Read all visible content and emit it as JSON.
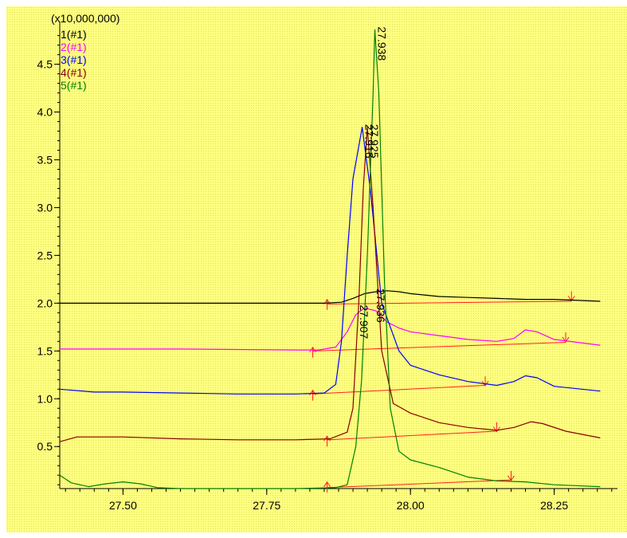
{
  "chart_data": {
    "type": "line",
    "multiplier_label": "(x10,000,000)",
    "xlim": [
      27.39,
      28.36
    ],
    "ylim": [
      0.06,
      4.88
    ],
    "x_ticks": [
      {
        "value": 27.5,
        "label": "27.50"
      },
      {
        "value": 27.75,
        "label": "27.75"
      },
      {
        "value": 28.0,
        "label": "28.00"
      },
      {
        "value": 28.25,
        "label": "28.25"
      }
    ],
    "y_ticks": [
      {
        "value": 0.5,
        "label": "0.5"
      },
      {
        "value": 1.0,
        "label": "1.0"
      },
      {
        "value": 1.5,
        "label": "1.5"
      },
      {
        "value": 2.0,
        "label": "2.0"
      },
      {
        "value": 2.5,
        "label": "2.5"
      },
      {
        "value": 3.0,
        "label": "3.0"
      },
      {
        "value": 3.5,
        "label": "3.5"
      },
      {
        "value": 4.0,
        "label": "4.0"
      },
      {
        "value": 4.5,
        "label": "4.5"
      }
    ],
    "series": [
      {
        "name": "1(#1)",
        "color": "#000000",
        "points": [
          [
            27.39,
            2.0
          ],
          [
            27.6,
            2.0
          ],
          [
            27.8,
            2.0
          ],
          [
            27.85,
            2.0
          ],
          [
            27.88,
            2.01
          ],
          [
            27.9,
            2.05
          ],
          [
            27.92,
            2.1
          ],
          [
            27.94,
            2.12
          ],
          [
            27.96,
            2.13
          ],
          [
            27.98,
            2.12
          ],
          [
            28.0,
            2.1
          ],
          [
            28.05,
            2.07
          ],
          [
            28.1,
            2.06
          ],
          [
            28.15,
            2.05
          ],
          [
            28.2,
            2.04
          ],
          [
            28.25,
            2.04
          ],
          [
            28.33,
            2.02
          ]
        ],
        "peak_label": {
          "text": "27.936",
          "x": 27.936,
          "y": 2.12
        },
        "markers": [
          [
            27.855,
            1.98
          ],
          [
            28.28,
            2.05
          ]
        ]
      },
      {
        "name": "2(#1)",
        "color": "#ff00ff",
        "points": [
          [
            27.39,
            1.52
          ],
          [
            27.6,
            1.52
          ],
          [
            27.8,
            1.51
          ],
          [
            27.84,
            1.51
          ],
          [
            27.87,
            1.54
          ],
          [
            27.89,
            1.7
          ],
          [
            27.905,
            1.88
          ],
          [
            27.92,
            1.95
          ],
          [
            27.94,
            1.92
          ],
          [
            27.96,
            1.8
          ],
          [
            27.98,
            1.74
          ],
          [
            28.0,
            1.7
          ],
          [
            28.05,
            1.66
          ],
          [
            28.1,
            1.62
          ],
          [
            28.15,
            1.6
          ],
          [
            28.18,
            1.63
          ],
          [
            28.2,
            1.72
          ],
          [
            28.22,
            1.7
          ],
          [
            28.25,
            1.62
          ],
          [
            28.33,
            1.56
          ]
        ],
        "peak_label": {
          "text": "27.907",
          "x": 27.907,
          "y": 1.95
        },
        "markers": [
          [
            27.83,
            1.48
          ],
          [
            28.27,
            1.62
          ]
        ]
      },
      {
        "name": "3(#1)",
        "color": "#0000ff",
        "points": [
          [
            27.39,
            1.1
          ],
          [
            27.45,
            1.07
          ],
          [
            27.5,
            1.07
          ],
          [
            27.6,
            1.06
          ],
          [
            27.7,
            1.05
          ],
          [
            27.8,
            1.05
          ],
          [
            27.85,
            1.06
          ],
          [
            27.87,
            1.15
          ],
          [
            27.88,
            1.6
          ],
          [
            27.89,
            2.5
          ],
          [
            27.9,
            3.3
          ],
          [
            27.916,
            3.84
          ],
          [
            27.93,
            3.2
          ],
          [
            27.95,
            2.0
          ],
          [
            27.98,
            1.5
          ],
          [
            28.0,
            1.35
          ],
          [
            28.05,
            1.25
          ],
          [
            28.1,
            1.18
          ],
          [
            28.15,
            1.14
          ],
          [
            28.18,
            1.18
          ],
          [
            28.2,
            1.24
          ],
          [
            28.22,
            1.22
          ],
          [
            28.25,
            1.13
          ],
          [
            28.33,
            1.08
          ]
        ],
        "peak_label": {
          "text": "27.916",
          "x": 27.916,
          "y": 3.84
        },
        "markers": [
          [
            27.83,
            1.03
          ],
          [
            28.13,
            1.16
          ]
        ]
      },
      {
        "name": "4(#1)",
        "color": "#880000",
        "points": [
          [
            27.39,
            0.55
          ],
          [
            27.42,
            0.6
          ],
          [
            27.5,
            0.6
          ],
          [
            27.6,
            0.58
          ],
          [
            27.7,
            0.57
          ],
          [
            27.8,
            0.57
          ],
          [
            27.86,
            0.58
          ],
          [
            27.89,
            0.65
          ],
          [
            27.9,
            0.9
          ],
          [
            27.91,
            2.0
          ],
          [
            27.918,
            3.2
          ],
          [
            27.925,
            3.84
          ],
          [
            27.935,
            3.0
          ],
          [
            27.95,
            1.5
          ],
          [
            27.97,
            0.95
          ],
          [
            28.0,
            0.85
          ],
          [
            28.05,
            0.75
          ],
          [
            28.1,
            0.7
          ],
          [
            28.15,
            0.67
          ],
          [
            28.18,
            0.7
          ],
          [
            28.21,
            0.76
          ],
          [
            28.23,
            0.74
          ],
          [
            28.27,
            0.66
          ],
          [
            28.33,
            0.59
          ]
        ],
        "peak_label": {
          "text": "27.925",
          "x": 27.925,
          "y": 3.84
        },
        "markers": [
          [
            27.855,
            0.55
          ],
          [
            28.15,
            0.68
          ]
        ]
      },
      {
        "name": "5(#1)",
        "color": "#008000",
        "points": [
          [
            27.39,
            0.2
          ],
          [
            27.41,
            0.12
          ],
          [
            27.44,
            0.08
          ],
          [
            27.47,
            0.11
          ],
          [
            27.5,
            0.13
          ],
          [
            27.53,
            0.11
          ],
          [
            27.56,
            0.07
          ],
          [
            27.6,
            0.06
          ],
          [
            27.7,
            0.06
          ],
          [
            27.8,
            0.06
          ],
          [
            27.87,
            0.07
          ],
          [
            27.89,
            0.1
          ],
          [
            27.905,
            0.5
          ],
          [
            27.915,
            1.2
          ],
          [
            27.925,
            2.5
          ],
          [
            27.935,
            4.2
          ],
          [
            27.938,
            4.86
          ],
          [
            27.945,
            4.2
          ],
          [
            27.955,
            2.2
          ],
          [
            27.965,
            0.9
          ],
          [
            27.98,
            0.45
          ],
          [
            28.0,
            0.36
          ],
          [
            28.05,
            0.28
          ],
          [
            28.1,
            0.18
          ],
          [
            28.15,
            0.14
          ],
          [
            28.2,
            0.13
          ],
          [
            28.25,
            0.1
          ],
          [
            28.33,
            0.08
          ]
        ],
        "peak_label": {
          "text": "27.938",
          "x": 27.938,
          "y": 4.86
        },
        "markers": [
          [
            27.855,
            0.07
          ],
          [
            28.175,
            0.17
          ]
        ]
      }
    ],
    "baselines": [
      {
        "color": "#ff2020",
        "from": [
          27.855,
          1.99
        ],
        "to": [
          28.28,
          2.02
        ]
      },
      {
        "color": "#ff2020",
        "from": [
          27.83,
          1.5
        ],
        "to": [
          28.27,
          1.59
        ]
      },
      {
        "color": "#ff2020",
        "from": [
          27.83,
          1.05
        ],
        "to": [
          28.13,
          1.14
        ]
      },
      {
        "color": "#ff2020",
        "from": [
          27.855,
          0.57
        ],
        "to": [
          28.15,
          0.66
        ]
      },
      {
        "color": "#ff2020",
        "from": [
          27.855,
          0.07
        ],
        "to": [
          28.175,
          0.15
        ]
      }
    ],
    "colors": {
      "background": "#ffff80",
      "axis": "#000000",
      "marker": "#ff2020"
    }
  }
}
